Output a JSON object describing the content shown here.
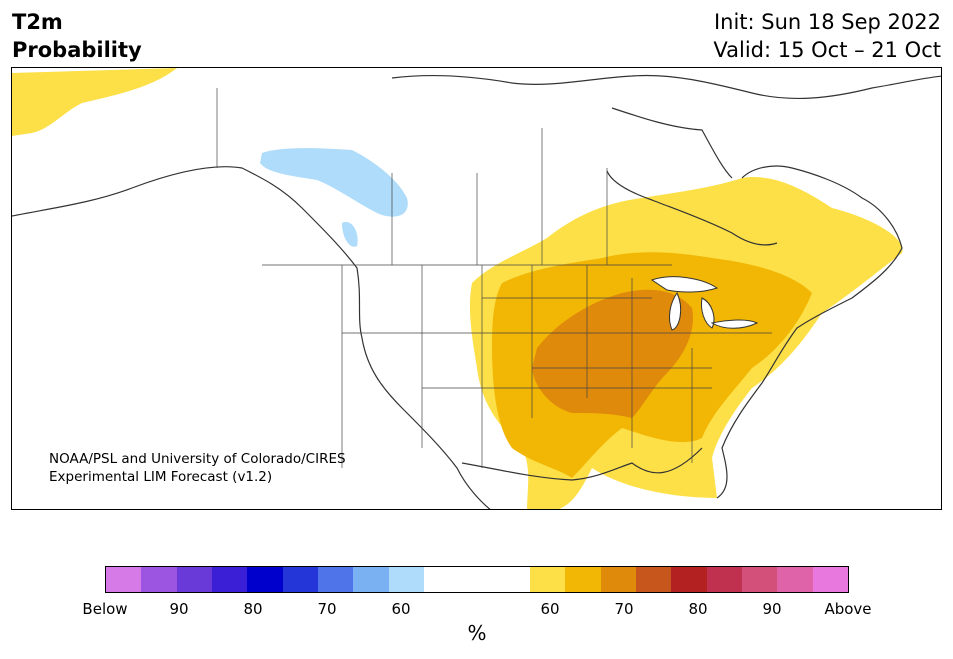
{
  "title": {
    "line1": "T2m",
    "line2": "Probability"
  },
  "init": {
    "line1": "Init: Sun 18 Sep 2022",
    "line2": "Valid: 15 Oct – 21 Oct"
  },
  "credit": {
    "line1": "NOAA/PSL and University of Colorado/CIRES",
    "line2": "Experimental LIM Forecast (v1.2)"
  },
  "colorbar": {
    "below_colors": [
      "#d67ae8",
      "#9b55e0",
      "#6a3ad9",
      "#3a1fd6",
      "#0000cc",
      "#2536d9",
      "#4f73e8",
      "#79b1f2",
      "#aedcfa"
    ],
    "above_colors": [
      "#fde047",
      "#f2b705",
      "#e08a0b",
      "#c6561b",
      "#b32121",
      "#c0304f",
      "#d2507a",
      "#df63a8",
      "#e878dd"
    ],
    "neutral_color": "#ffffff",
    "tick_labels": [
      "Below",
      "90",
      "80",
      "70",
      "60",
      "60",
      "70",
      "80",
      "90",
      "Above"
    ],
    "unit": "%"
  },
  "map": {
    "region": "North America",
    "colors": {
      "land": "#ffffff",
      "coast": "#333333",
      "cold": "#aedcfa",
      "warm1": "#fde047",
      "warm2": "#f2b705",
      "warm3": "#e08a0b",
      "lake": "#ffffff"
    }
  }
}
